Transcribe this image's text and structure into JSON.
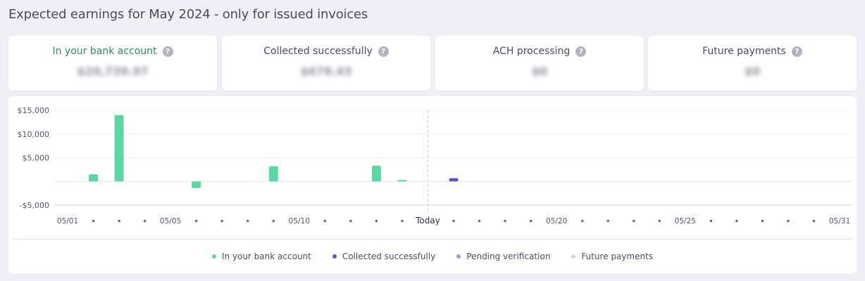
{
  "page": {
    "title": "Expected earnings for May 2024 - only for issued invoices"
  },
  "cards": [
    {
      "label": "In your bank account",
      "value": "$20,739.97",
      "icon": "help-icon"
    },
    {
      "label": "Collected successfully",
      "value": "$678.43",
      "icon": "help-icon"
    },
    {
      "label": "ACH processing",
      "value": "$0",
      "icon": "help-icon"
    },
    {
      "label": "Future payments",
      "value": "$0",
      "icon": "help-icon"
    }
  ],
  "help_icon_glyph": "?",
  "colors": {
    "bank": "#5dd6a3",
    "collected": "#5b56d0",
    "pending": "#9b97e0",
    "future": "#d4d4de",
    "accent_green": "#2e8b66"
  },
  "chart_data": {
    "type": "bar",
    "ylim": [
      -5000,
      15000
    ],
    "yticks": [
      15000,
      10000,
      5000,
      -5000
    ],
    "ytick_labels": [
      "$15,000",
      "$10,000",
      "$5,000",
      "-$5,000"
    ],
    "days": 31,
    "x_labels": [
      {
        "day": 1,
        "label": "05/01"
      },
      {
        "day": 5,
        "label": "05/05"
      },
      {
        "day": 10,
        "label": "05/10"
      },
      {
        "day": 15,
        "label": "Today"
      },
      {
        "day": 20,
        "label": "05/20"
      },
      {
        "day": 25,
        "label": "05/25"
      },
      {
        "day": 31,
        "label": "05/31"
      }
    ],
    "today_day": 15,
    "series": [
      {
        "name": "In your bank account",
        "points": [
          {
            "day": 2,
            "value": 1500
          },
          {
            "day": 3,
            "value": 14000
          },
          {
            "day": 6,
            "value": -1400
          },
          {
            "day": 9,
            "value": 3200
          },
          {
            "day": 13,
            "value": 3300
          },
          {
            "day": 14,
            "value": 300
          }
        ]
      },
      {
        "name": "Collected successfully",
        "points": [
          {
            "day": 16,
            "value": 680
          }
        ]
      },
      {
        "name": "Pending verification",
        "points": []
      },
      {
        "name": "Future payments",
        "points": []
      }
    ]
  },
  "legend": [
    {
      "label": "In your bank account",
      "color": "#5dd6a3"
    },
    {
      "label": "Collected successfully",
      "color": "#5b56d0"
    },
    {
      "label": "Pending verification",
      "color": "#9b97e0"
    },
    {
      "label": "Future payments",
      "color": "#d4d4de"
    }
  ]
}
